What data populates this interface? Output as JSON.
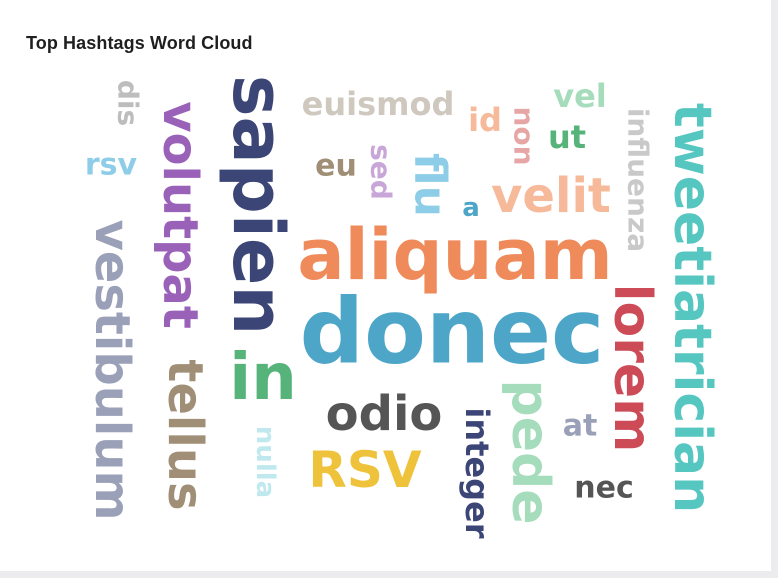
{
  "title": "Top Hashtags Word Cloud",
  "chart_data": {
    "type": "word-cloud",
    "title": "Top Hashtags Word Cloud",
    "words": [
      {
        "text": "donec",
        "color": "#4da6c8"
      },
      {
        "text": "aliquam",
        "color": "#ef8a5b"
      },
      {
        "text": "sapien",
        "color": "#3c4676"
      },
      {
        "text": "tweetiatrician",
        "color": "#56c6c0"
      },
      {
        "text": "vestibulum",
        "color": "#9aa0b7"
      },
      {
        "text": "volutpat",
        "color": "#9a61b8"
      },
      {
        "text": "lorem",
        "color": "#cc4b57"
      },
      {
        "text": "tellus",
        "color": "#a08f76"
      },
      {
        "text": "pede",
        "color": "#a5dcbb"
      },
      {
        "text": "velit",
        "color": "#f6b99a"
      },
      {
        "text": "odio",
        "color": "#555555"
      },
      {
        "text": "RSV",
        "color": "#eec23a"
      },
      {
        "text": "in",
        "color": "#56b47a"
      },
      {
        "text": "flu",
        "color": "#8ecde7"
      },
      {
        "text": "integer",
        "color": "#3c4676"
      },
      {
        "text": "euismod",
        "color": "#cfc8be"
      },
      {
        "text": "influenza",
        "color": "#c9c9c9"
      },
      {
        "text": "nec",
        "color": "#555555"
      },
      {
        "text": "at",
        "color": "#9aa0b7"
      },
      {
        "text": "id",
        "color": "#f6b99a"
      },
      {
        "text": "non",
        "color": "#e7a6a6"
      },
      {
        "text": "vel",
        "color": "#a5dcbb"
      },
      {
        "text": "ut",
        "color": "#56b47a"
      },
      {
        "text": "sed",
        "color": "#c8a6d8"
      },
      {
        "text": "eu",
        "color": "#a08f76"
      },
      {
        "text": "rsv",
        "color": "#8ecde7"
      },
      {
        "text": "dis",
        "color": "#bdbdbd"
      },
      {
        "text": "nulla",
        "color": "#bfe9ee"
      },
      {
        "text": "a",
        "color": "#4da6c8"
      }
    ]
  }
}
